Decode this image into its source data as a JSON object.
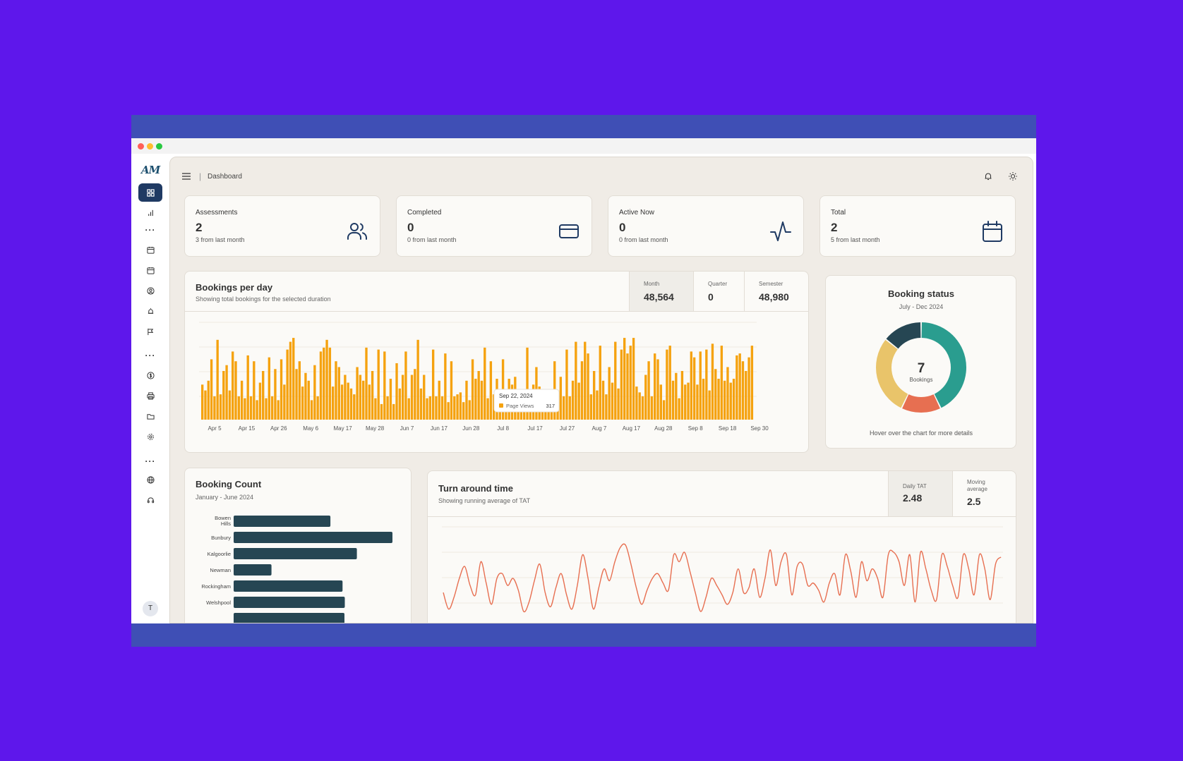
{
  "app": {
    "logo_text": "AM",
    "avatar_initial": "T"
  },
  "header": {
    "breadcrumb": "Dashboard"
  },
  "stats": [
    {
      "title": "Assessments",
      "value": "2",
      "sub": "3 from last month",
      "icon": "users-icon"
    },
    {
      "title": "Completed",
      "value": "0",
      "sub": "0 from last month",
      "icon": "credit-card-icon"
    },
    {
      "title": "Active Now",
      "value": "0",
      "sub": "0 from last month",
      "icon": "activity-icon"
    },
    {
      "title": "Total",
      "value": "2",
      "sub": "5 from last month",
      "icon": "calendar-icon"
    }
  ],
  "bookings_per_day": {
    "title": "Bookings per day",
    "subtitle": "Showing total bookings for the selected duration",
    "metrics": [
      {
        "label": "Month",
        "value": "48,564"
      },
      {
        "label": "Quarter",
        "value": "0"
      },
      {
        "label": "Semester",
        "value": "48,980"
      }
    ],
    "tooltip": {
      "date": "Sep 22, 2024",
      "series": "Page Views",
      "value": "317"
    }
  },
  "booking_status": {
    "title": "Booking status",
    "subtitle": "July - Dec 2024",
    "center_value": "7",
    "center_label": "Bookings",
    "footer": "Hover over the chart for more details"
  },
  "booking_count": {
    "title": "Booking Count",
    "subtitle": "January - June 2024"
  },
  "turnaround": {
    "title": "Turn around time",
    "subtitle": "Showing running average of TAT",
    "metrics": [
      {
        "label": "Daily TAT",
        "value": "2.48"
      },
      {
        "label": "Moving\naverage",
        "value": "2.5"
      }
    ]
  },
  "chart_data": [
    {
      "type": "bar",
      "title": "Bookings per day",
      "x_tick_labels": [
        "Apr 5",
        "Apr 15",
        "Apr 26",
        "May 6",
        "May 17",
        "May 28",
        "Jun 7",
        "Jun 17",
        "Jun 28",
        "Jul 8",
        "Jul 17",
        "Jul 27",
        "Aug 7",
        "Aug 17",
        "Aug 28",
        "Sep 8",
        "Sep 18",
        "Sep 30"
      ],
      "color": "#f5a20f",
      "ylim": [
        0,
        500
      ],
      "values": [
        180,
        150,
        200,
        310,
        120,
        410,
        130,
        250,
        280,
        150,
        350,
        300,
        120,
        200,
        110,
        330,
        120,
        300,
        100,
        190,
        250,
        110,
        320,
        120,
        260,
        100,
        310,
        180,
        360,
        400,
        420,
        260,
        300,
        170,
        240,
        200,
        100,
        280,
        120,
        350,
        370,
        410,
        370,
        170,
        300,
        270,
        180,
        230,
        190,
        160,
        130,
        270,
        230,
        200,
        370,
        180,
        250,
        110,
        360,
        80,
        350,
        120,
        210,
        80,
        290,
        160,
        230,
        350,
        110,
        230,
        260,
        410,
        160,
        230,
        110,
        120,
        360,
        120,
        200,
        120,
        340,
        90,
        300,
        120,
        130,
        140,
        90,
        200,
        100,
        310,
        210,
        250,
        200,
        370,
        110,
        300,
        130,
        210,
        120,
        310,
        90,
        210,
        180,
        220,
        90,
        150,
        80,
        370,
        140,
        180,
        270,
        170,
        140,
        150,
        110,
        140,
        300,
        120,
        220,
        120,
        360,
        120,
        200,
        400,
        190,
        300,
        400,
        340,
        130,
        250,
        150,
        380,
        200,
        130,
        270,
        190,
        400,
        160,
        360,
        420,
        340,
        380,
        420,
        170,
        140,
        120,
        230,
        300,
        120,
        340,
        310,
        180,
        100,
        360,
        380,
        200,
        240,
        110,
        250,
        180,
        190,
        350,
        320,
        180,
        350,
        210,
        360,
        150,
        390,
        260,
        210,
        380,
        200,
        270,
        190,
        210,
        330,
        340,
        300,
        250,
        320,
        380
      ]
    },
    {
      "type": "pie",
      "title": "Booking status",
      "subtitle": "July - Dec 2024",
      "slices": [
        {
          "value": 3,
          "color": "#2a9d8f"
        },
        {
          "value": 1,
          "color": "#e76f51"
        },
        {
          "value": 2,
          "color": "#e9c46a"
        },
        {
          "value": 1,
          "color": "#264653"
        }
      ]
    },
    {
      "type": "bar",
      "orientation": "horizontal",
      "title": "Booking Count",
      "subtitle": "January - June 2024",
      "color": "#264653",
      "categories": [
        "Bowen Hills",
        "Bunbury",
        "Kalgoorlie",
        "Newman",
        "Rockingham",
        "Welshpool"
      ],
      "values": [
        128,
        210,
        163,
        50,
        144,
        147
      ]
    },
    {
      "type": "line",
      "title": "Turn around time",
      "color": "#e76f51",
      "values": [
        2.3,
        1.6,
        2.1,
        2.9,
        3.4,
        2.6,
        2.2,
        3.6,
        2.7,
        1.8,
        2.9,
        3.1,
        2.6,
        2.9,
        2.4,
        1.5,
        1.9,
        2.8,
        3.5,
        2.3,
        1.7,
        2.5,
        3.1,
        2.2,
        1.6,
        2.6,
        3.9,
        2.9,
        1.6,
        2.5,
        3.3,
        2.8,
        3.6,
        4.2,
        4.3,
        3.5,
        2.5,
        1.8,
        2.4,
        2.9,
        3.1,
        2.7,
        2.4,
        3.9,
        3.6,
        4.0,
        3.2,
        2.3,
        1.5,
        2.1,
        2.9,
        2.6,
        2.2,
        1.8,
        2.3,
        3.3,
        2.3,
        2.5,
        3.3,
        2.1,
        2.9,
        4.1,
        2.6,
        3.6,
        3.9,
        2.2,
        3.4,
        3.5,
        2.6,
        2.7,
        2.4,
        1.9,
        2.7,
        3.1,
        2.2,
        3.9,
        3.2,
        2.1,
        3.6,
        2.8,
        3.3,
        2.9,
        2.1,
        3.9,
        4.0,
        3.6,
        2.6,
        3.9,
        1.9,
        4.0,
        3.3,
        2.4,
        2.0,
        3.9,
        3.4,
        2.6,
        2.1,
        3.9,
        3.3,
        2.2,
        3.9,
        3.3,
        2.0,
        3.5,
        3.8
      ]
    }
  ]
}
